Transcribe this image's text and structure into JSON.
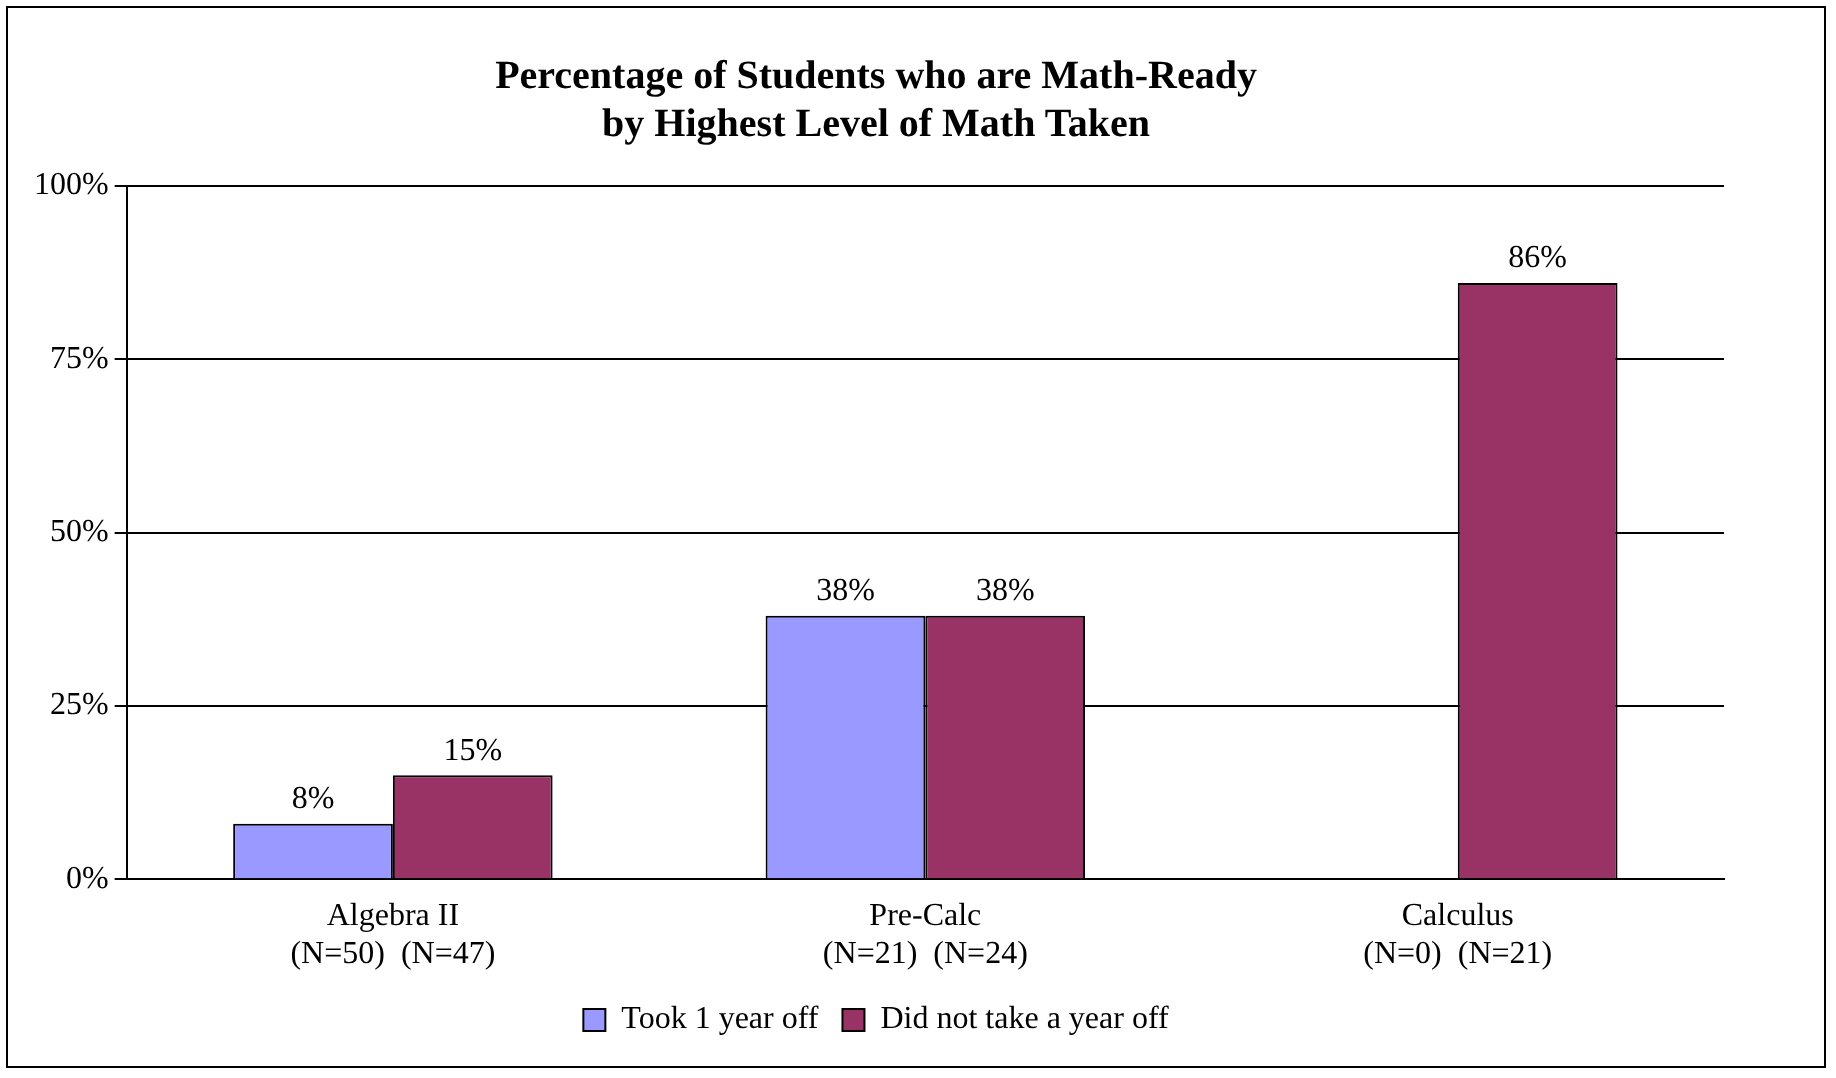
{
  "chart_data": {
    "type": "bar",
    "title": "Percentage of Students who are Math-Ready\nby Highest Level of Math Taken",
    "categories": [
      "Algebra II\n(N=50)  (N=47)",
      "Pre-Calc\n(N=21)  (N=24)",
      "Calculus\n(N=0)  (N=21)"
    ],
    "series": [
      {
        "name": "Took 1 year off",
        "color": "#9999ff",
        "values": [
          8,
          38,
          null
        ],
        "value_labels": [
          "8%",
          "38%",
          null
        ]
      },
      {
        "name": "Did not take a year off",
        "color": "#993366",
        "values": [
          15,
          38,
          86
        ],
        "value_labels": [
          "15%",
          "38%",
          "86%"
        ]
      }
    ],
    "ylim": [
      0,
      100
    ],
    "yticks": [
      {
        "value": 0,
        "label": "0%"
      },
      {
        "value": 25,
        "label": "25%"
      },
      {
        "value": 50,
        "label": "50%"
      },
      {
        "value": 75,
        "label": "75%"
      },
      {
        "value": 100,
        "label": "100%"
      }
    ],
    "grid": "y",
    "legend": "bottom"
  }
}
